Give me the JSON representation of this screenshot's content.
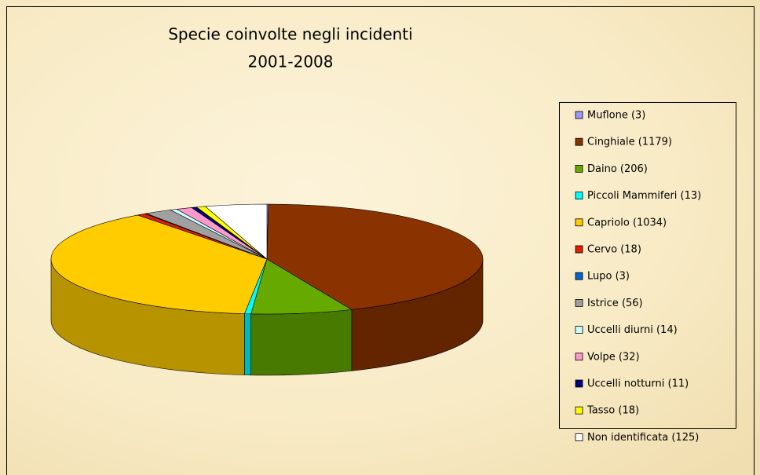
{
  "chart_data": {
    "type": "pie",
    "title": "Specie coinvolte negli incidenti",
    "subtitle": "2001-2008",
    "categories": [
      "Muflone (3)",
      "Cinghiale (1179)",
      "Daino (206)",
      "Piccoli Mammiferi (13)",
      "Capriolo (1034)",
      "Cervo (18)",
      "Lupo (3)",
      "Istrice (56)",
      "Uccelli diurni (14)",
      "Volpe (32)",
      "Uccelli notturni (11)",
      "Tasso (18)",
      "Non identificata (125)"
    ],
    "values": [
      3,
      1179,
      206,
      13,
      1034,
      18,
      3,
      56,
      14,
      32,
      11,
      18,
      125
    ],
    "colors": [
      "#9999ff",
      "#8a3300",
      "#66aa00",
      "#00ffff",
      "#ffcc00",
      "#e02000",
      "#0066cc",
      "#a0a0a0",
      "#ccffff",
      "#ff99cc",
      "#000080",
      "#ffff00",
      "#ffffff"
    ],
    "legend": "right"
  }
}
